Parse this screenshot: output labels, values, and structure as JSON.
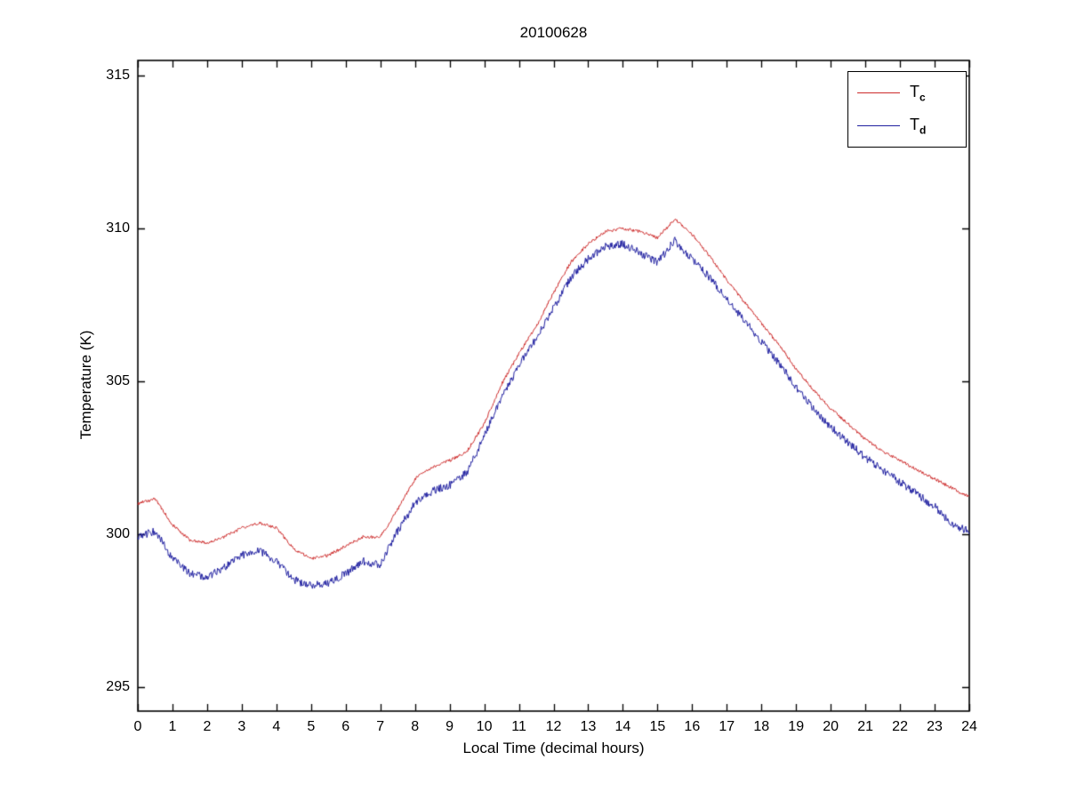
{
  "figure": {
    "background": "#ffffff",
    "axes_color": "#000000",
    "text_color": "#000000"
  },
  "chart_data": {
    "type": "line",
    "title": "20100628",
    "xlabel": "Local Time (decimal hours)",
    "ylabel": "Temperature (K)",
    "xlim": [
      0,
      24
    ],
    "ylim": [
      294.2,
      315.5
    ],
    "xticks": [
      0,
      1,
      2,
      3,
      4,
      5,
      6,
      7,
      8,
      9,
      10,
      11,
      12,
      13,
      14,
      15,
      16,
      17,
      18,
      19,
      20,
      21,
      22,
      23,
      24
    ],
    "yticks": [
      295,
      300,
      305,
      310,
      315
    ],
    "grid": false,
    "legend_position": "top-right",
    "x": [
      0,
      0.5,
      1,
      1.5,
      2,
      2.5,
      3,
      3.5,
      4,
      4.5,
      5,
      5.5,
      6,
      6.5,
      7,
      7.5,
      8,
      8.5,
      9,
      9.5,
      10,
      10.5,
      11,
      11.5,
      12,
      12.5,
      13,
      13.5,
      14,
      14.5,
      15,
      15.5,
      16,
      16.5,
      17,
      17.5,
      18,
      18.5,
      19,
      19.5,
      20,
      20.5,
      21,
      21.5,
      22,
      22.5,
      23,
      23.5,
      24
    ],
    "series": [
      {
        "name": "Tc",
        "label_main": "T",
        "label_sub": "c",
        "color": "#cc2a2a",
        "noise": 0.05,
        "values": [
          301.0,
          301.15,
          300.3,
          299.8,
          299.7,
          299.9,
          300.2,
          300.35,
          300.2,
          299.5,
          299.2,
          299.3,
          299.6,
          299.9,
          299.9,
          300.8,
          301.8,
          302.2,
          302.4,
          302.7,
          303.6,
          304.9,
          305.9,
          306.8,
          307.9,
          308.9,
          309.5,
          309.9,
          310.0,
          309.9,
          309.7,
          310.3,
          309.8,
          309.1,
          308.3,
          307.6,
          306.9,
          306.2,
          305.4,
          304.7,
          304.1,
          303.6,
          303.1,
          302.7,
          302.4,
          302.1,
          301.8,
          301.5,
          301.2
        ]
      },
      {
        "name": "Td",
        "label_main": "T",
        "label_sub": "d",
        "color": "#2020a0",
        "noise": 0.13,
        "values": [
          299.9,
          300.1,
          299.2,
          298.7,
          298.6,
          298.9,
          299.3,
          299.45,
          299.1,
          298.5,
          298.3,
          298.4,
          298.7,
          299.1,
          299.0,
          300.1,
          301.0,
          301.4,
          301.6,
          302.0,
          303.2,
          304.5,
          305.5,
          306.4,
          307.4,
          308.4,
          309.0,
          309.4,
          309.5,
          309.2,
          308.9,
          309.6,
          309.0,
          308.4,
          307.7,
          307.0,
          306.3,
          305.6,
          304.8,
          304.1,
          303.5,
          303.0,
          302.5,
          302.1,
          301.7,
          301.3,
          300.9,
          300.3,
          300.1
        ]
      }
    ]
  }
}
